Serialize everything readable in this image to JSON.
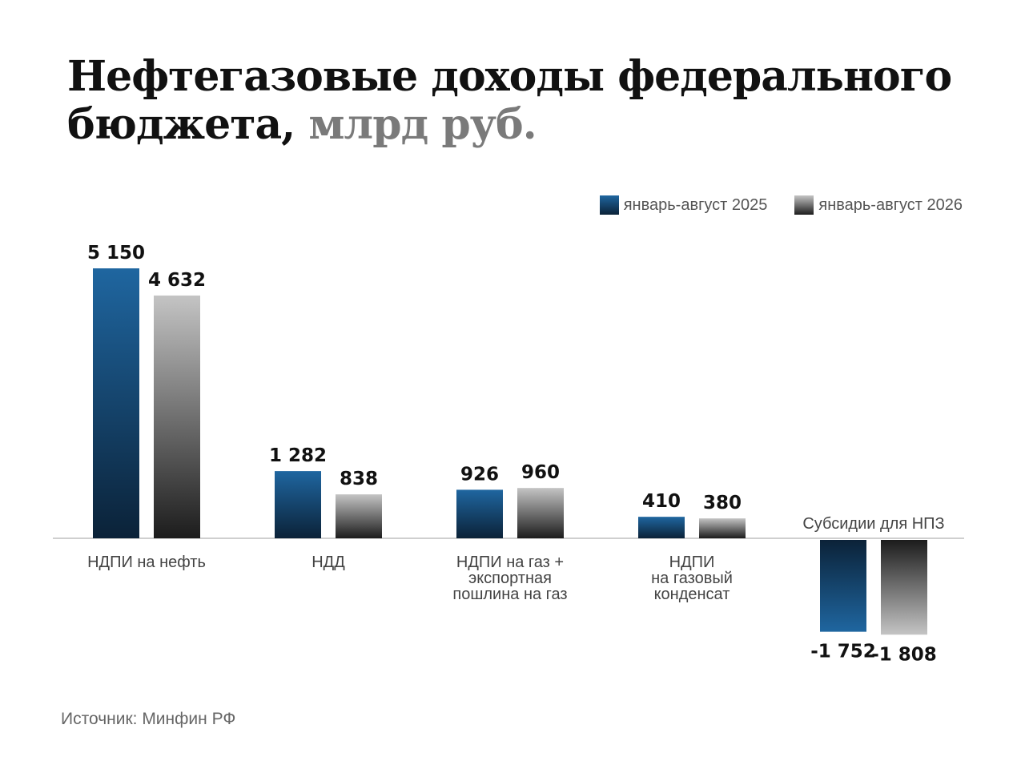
{
  "title": {
    "main": "Нефтегазовые доходы федерального бюджета,",
    "unit": "млрд руб."
  },
  "source": "Источник: Минфин РФ",
  "colors": {
    "series_2025_top": "#1f66a0",
    "series_2025_bottom": "#0b2238",
    "series_2026_top": "#c4c4c4",
    "series_2026_bottom": "#1c1c1c",
    "axis": "#cfcfcf"
  },
  "chart_data": {
    "type": "bar",
    "categories": [
      [
        "НДПИ на нефть"
      ],
      [
        "НДД"
      ],
      [
        "НДПИ на газ +",
        "экспортная",
        "пошлина на газ"
      ],
      [
        "НДПИ",
        "на газовый",
        "конденсат"
      ],
      [
        "Субсидии для НПЗ"
      ]
    ],
    "series": [
      {
        "name": "январь-август 2025",
        "values": [
          5150,
          1282,
          926,
          410,
          -1752
        ]
      },
      {
        "name": "январь-август 2026",
        "values": [
          4632,
          838,
          960,
          380,
          -1808
        ]
      }
    ],
    "value_labels": [
      [
        "5 150",
        "1 282",
        "926",
        "410",
        "-1 752"
      ],
      [
        "4 632",
        "838",
        "960",
        "380",
        "-1 808"
      ]
    ],
    "title": "Нефтегазовые доходы федерального бюджета, млрд руб.",
    "legend_position": "top-right",
    "grid": false
  }
}
